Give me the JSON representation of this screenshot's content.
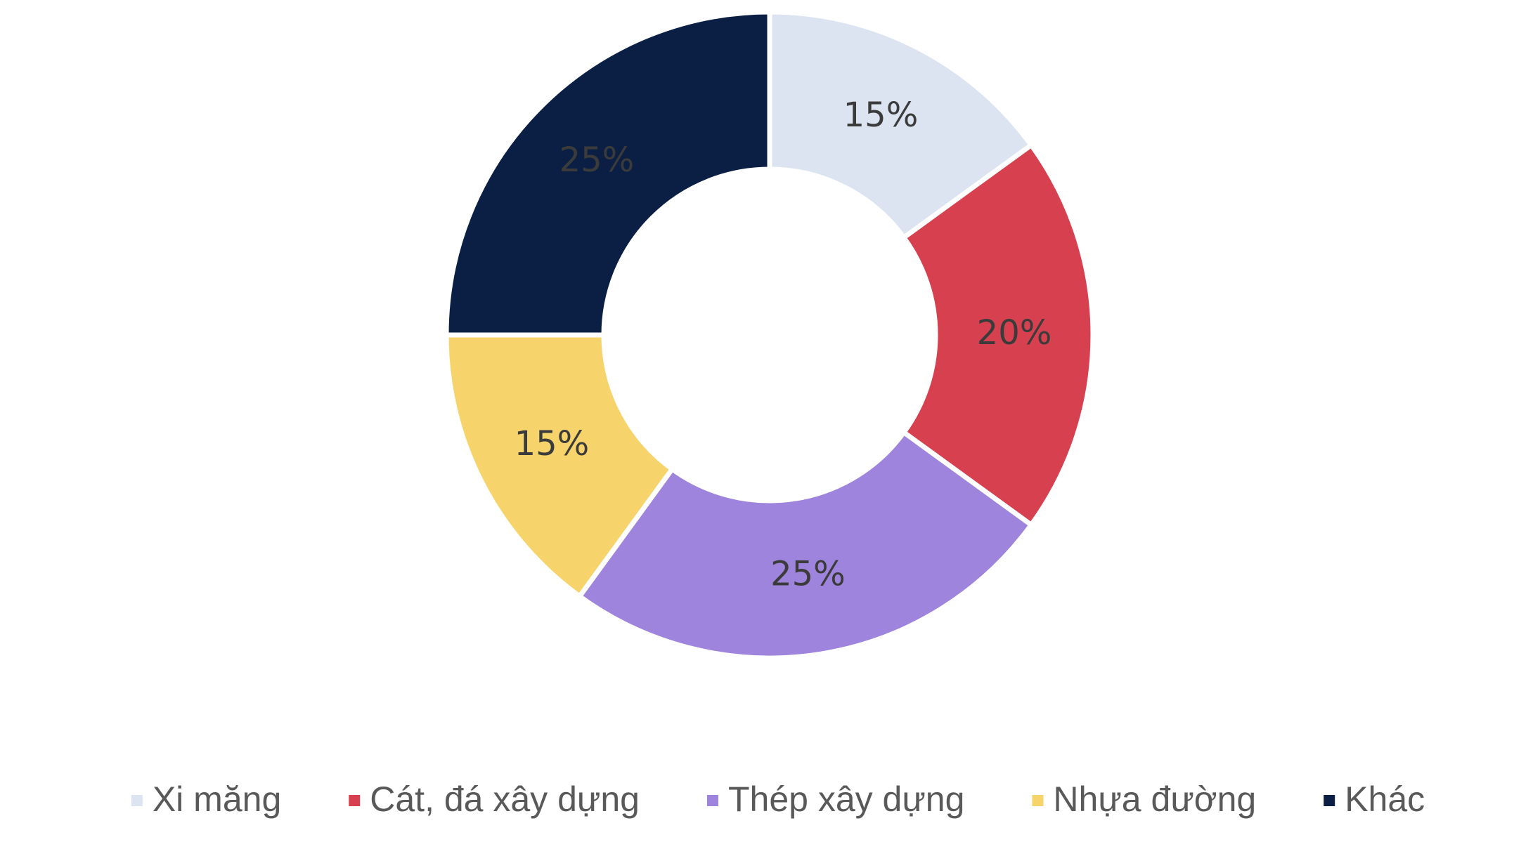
{
  "chart_data": {
    "type": "donut",
    "categories": [
      "Xi măng",
      "Cát, đá xây dựng",
      "Thép xây dựng",
      "Nhựa đường",
      "Khác"
    ],
    "values": [
      15,
      20,
      25,
      15,
      25
    ],
    "value_labels": [
      "15%",
      "20%",
      "25%",
      "15%",
      "25%"
    ],
    "colors": [
      "#dce3f1",
      "#d7404f",
      "#9e84dc",
      "#f6d46b",
      "#0b1f45"
    ],
    "legend": "bottom"
  }
}
